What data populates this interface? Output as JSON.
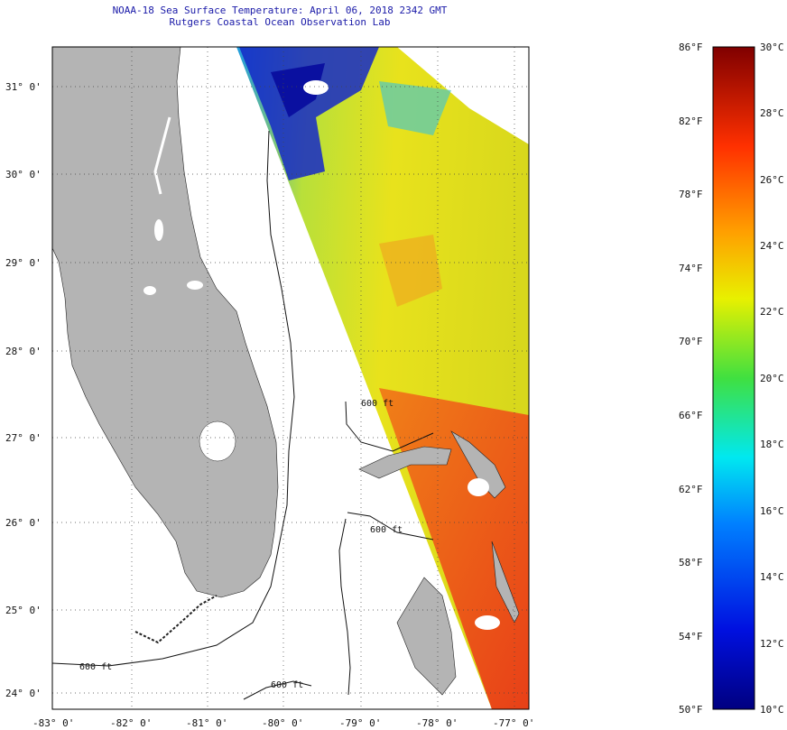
{
  "header": {
    "title": "NOAA-18 Sea Surface Temperature:  April 06, 2018 2342 GMT",
    "subtitle": "Rutgers Coastal Ocean Observation Lab"
  },
  "map": {
    "lat_labels": [
      "31° 0'",
      "30° 0'",
      "29° 0'",
      "28° 0'",
      "27° 0'",
      "26° 0'",
      "25° 0'",
      "24° 0'"
    ],
    "lon_labels": [
      "-83° 0'",
      "-82° 0'",
      "-81° 0'",
      "-80° 0'",
      "-79° 0'",
      "-78° 0'",
      "-77° 0'"
    ],
    "contour_labels": [
      "600 ft",
      "600 ft",
      "600 ft",
      "600 ft"
    ],
    "land_color": "#b4b4b4"
  },
  "colorbar": {
    "fahrenheit_labels": [
      "86°F",
      "82°F",
      "78°F",
      "74°F",
      "70°F",
      "66°F",
      "62°F",
      "58°F",
      "54°F",
      "50°F"
    ],
    "celsius_labels": [
      "30°C",
      "28°C",
      "26°C",
      "24°C",
      "22°C",
      "20°C",
      "18°C",
      "16°C",
      "14°C",
      "12°C",
      "10°C"
    ],
    "range_f": [
      50,
      86
    ],
    "range_c": [
      10,
      30
    ]
  }
}
